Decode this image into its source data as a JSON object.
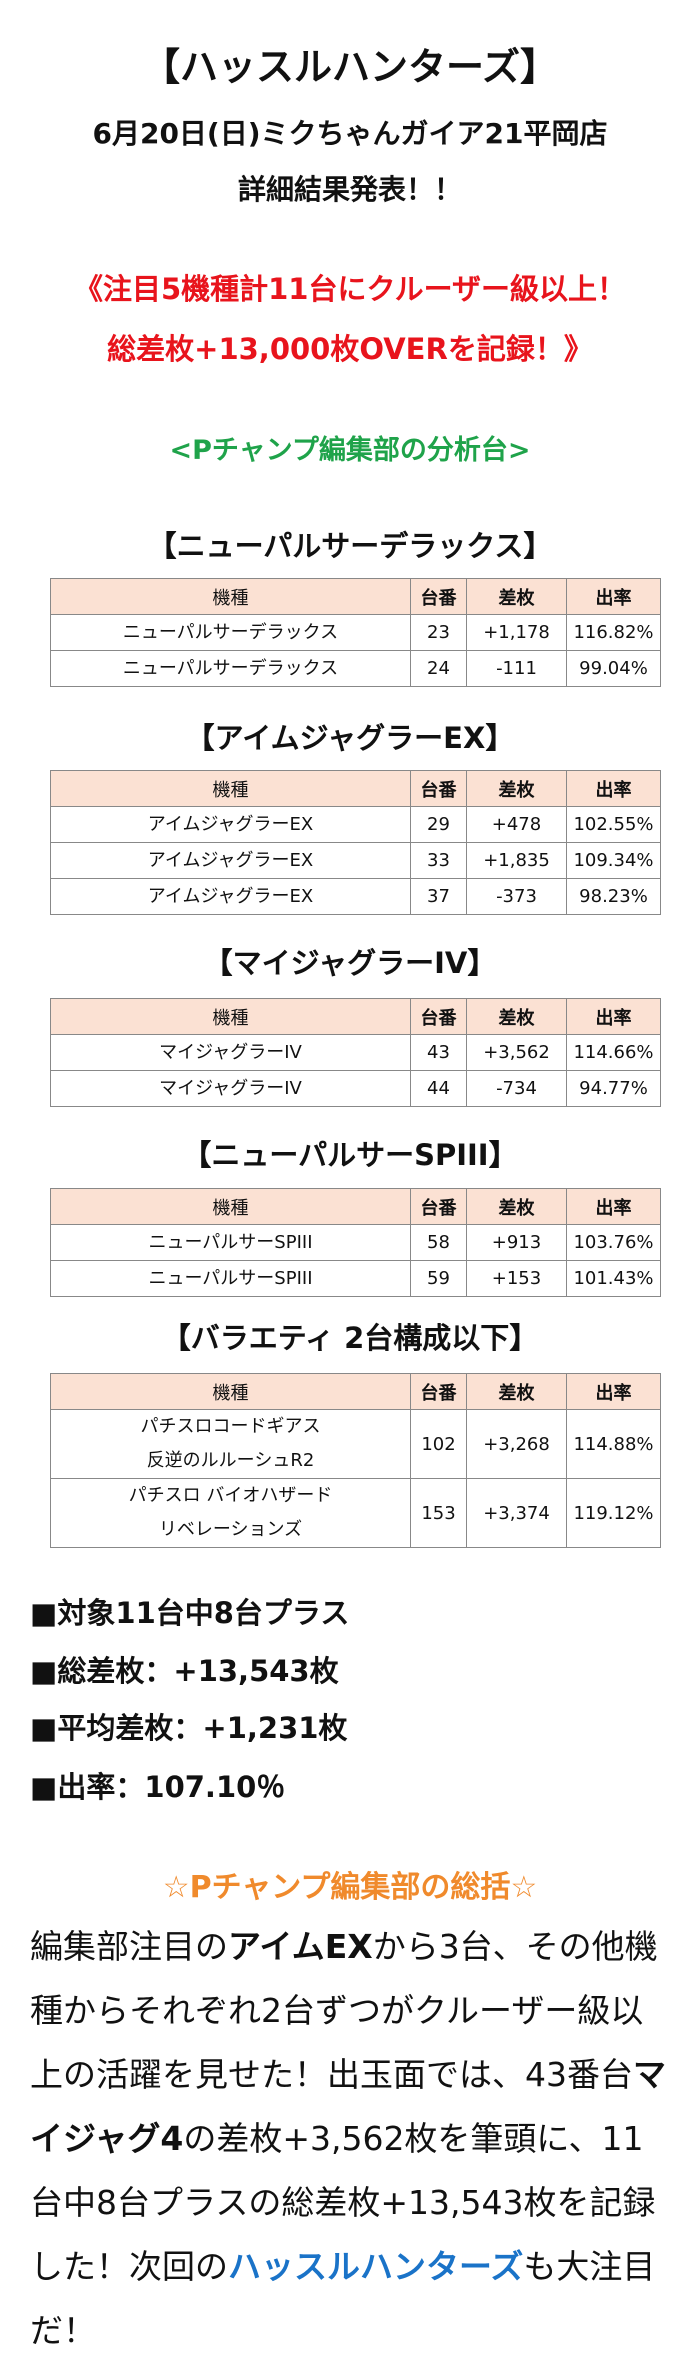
{
  "header": {
    "title": "【ハッスルハンターズ】",
    "subtitle": "6月20日(日)ミクちゃんガイア21平岡店",
    "subtitle2": "詳細結果発表！！"
  },
  "highlight": [
    "《注目5機種計11台にクルーザー級以上！",
    "総差枚+13,000枚OVERを記録！》"
  ],
  "section_title": "<Pチャンプ編集部の分析台>",
  "tables": [
    {
      "heading": "【ニューパルサーデラックス】",
      "columns": [
        "機種",
        "台番",
        "差枚",
        "出率"
      ],
      "rows": [
        [
          [
            "ニューパルサーデラックス"
          ],
          "23",
          "+1,178",
          "116.82%"
        ],
        [
          [
            "ニューパルサーデラックス"
          ],
          "24",
          "-111",
          "99.04%"
        ]
      ]
    },
    {
      "heading": "【アイムジャグラーEX】",
      "columns": [
        "機種",
        "台番",
        "差枚",
        "出率"
      ],
      "rows": [
        [
          [
            "アイムジャグラーEX"
          ],
          "29",
          "+478",
          "102.55%"
        ],
        [
          [
            "アイムジャグラーEX"
          ],
          "33",
          "+1,835",
          "109.34%"
        ],
        [
          [
            "アイムジャグラーEX"
          ],
          "37",
          "-373",
          "98.23%"
        ]
      ]
    },
    {
      "heading": "【マイジャグラーIV】",
      "columns": [
        "機種",
        "台番",
        "差枚",
        "出率"
      ],
      "rows": [
        [
          [
            "マイジャグラーIV"
          ],
          "43",
          "+3,562",
          "114.66%"
        ],
        [
          [
            "マイジャグラーIV"
          ],
          "44",
          "-734",
          "94.77%"
        ]
      ]
    },
    {
      "heading": "【ニューパルサーSPIII】",
      "columns": [
        "機種",
        "台番",
        "差枚",
        "出率"
      ],
      "rows": [
        [
          [
            "ニューパルサーSPIII"
          ],
          "58",
          "+913",
          "103.76%"
        ],
        [
          [
            "ニューパルサーSPIII"
          ],
          "59",
          "+153",
          "101.43%"
        ]
      ]
    },
    {
      "heading": "【バラエティ 2台構成以下】",
      "columns": [
        "機種",
        "台番",
        "差枚",
        "出率"
      ],
      "rows": [
        [
          [
            "パチスロコードギアス",
            "反逆のルルーシュR2"
          ],
          "102",
          "+3,268",
          "114.88%"
        ],
        [
          [
            "パチスロ バイオハザード",
            "リベレーションズ"
          ],
          "153",
          "+3,374",
          "119.12%"
        ]
      ]
    }
  ],
  "summary": [
    "■対象11台中8台プラス",
    "■総差枚：+13,543枚",
    "■平均差枚：+1,231枚",
    "■出率：107.10％"
  ],
  "conclusion": {
    "title": "☆Pチャンプ編集部の総括☆",
    "paragraph": [
      "編集部注目の",
      "アイムEX",
      "から3台、その他機種からそれぞれ2台ずつがクルーザー級以上の活躍を見せた！出玉面では、43番台",
      "マイジャグ4",
      "の差枚+3,562枚を筆頭に、11台中8台プラスの総差枚+13,543枚を記録した！次回の",
      "ハッスルハンターズ",
      "も大注目だ！"
    ]
  }
}
